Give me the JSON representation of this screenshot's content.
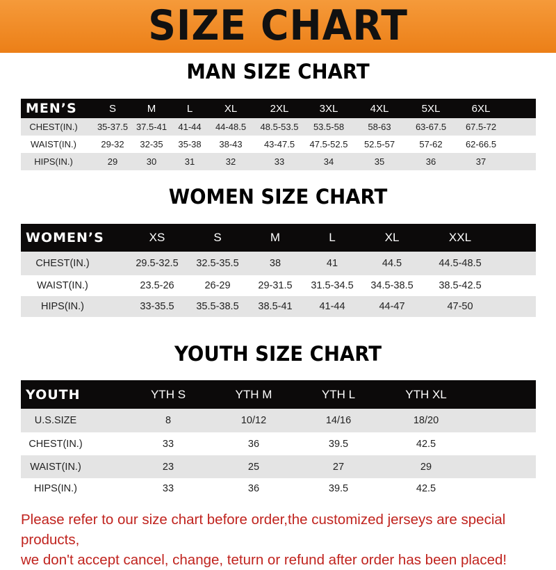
{
  "banner_title": "SIZE CHART",
  "men": {
    "title": "MAN SIZE CHART",
    "header": [
      "MEN’S",
      "S",
      "M",
      "L",
      "XL",
      "2XL",
      "3XL",
      "4XL",
      "5XL",
      "6XL"
    ],
    "rows": [
      [
        "CHEST(IN.)",
        "35-37.5",
        "37.5-41",
        "41-44",
        "44-48.5",
        "48.5-53.5",
        "53.5-58",
        "58-63",
        "63-67.5",
        "67.5-72"
      ],
      [
        "WAIST(IN.)",
        "29-32",
        "32-35",
        "35-38",
        "38-43",
        "43-47.5",
        "47.5-52.5",
        "52.5-57",
        "57-62",
        "62-66.5"
      ],
      [
        "HIPS(IN.)",
        "29",
        "30",
        "31",
        "32",
        "33",
        "34",
        "35",
        "36",
        "37"
      ]
    ]
  },
  "women": {
    "title": "WOMEN SIZE CHART",
    "header": [
      "WOMEN’S",
      "XS",
      "S",
      "M",
      "L",
      "XL",
      "XXL"
    ],
    "rows": [
      [
        "CHEST(IN.)",
        "29.5-32.5",
        "32.5-35.5",
        "38",
        "41",
        "44.5",
        "44.5-48.5"
      ],
      [
        "WAIST(IN.)",
        "23.5-26",
        "26-29",
        "29-31.5",
        "31.5-34.5",
        "34.5-38.5",
        "38.5-42.5"
      ],
      [
        "HIPS(IN.)",
        "33-35.5",
        "35.5-38.5",
        "38.5-41",
        "41-44",
        "44-47",
        "47-50"
      ]
    ]
  },
  "youth": {
    "title": "YOUTH SIZE CHART",
    "header": [
      "YOUTH",
      "YTH S",
      "YTH M",
      "YTH L",
      "YTH XL"
    ],
    "rows": [
      [
        "U.S.SIZE",
        "8",
        "10/12",
        "14/16",
        "18/20"
      ],
      [
        "CHEST(IN.)",
        "33",
        "36",
        "39.5",
        "42.5"
      ],
      [
        "WAIST(IN.)",
        "23",
        "25",
        "27",
        "29"
      ],
      [
        "HIPS(IN.)",
        "33",
        "36",
        "39.5",
        "42.5"
      ]
    ]
  },
  "notice": {
    "line1": "Please refer to our size chart before order,the customized jerseys are special products,",
    "line2": "we don't accept cancel, change, teturn or refund after order has been placed!"
  },
  "colors": {
    "banner": "#ee8420",
    "header_row": "#0c0a0a",
    "stripe": "#e4e4e4",
    "notice": "#c0231e"
  }
}
